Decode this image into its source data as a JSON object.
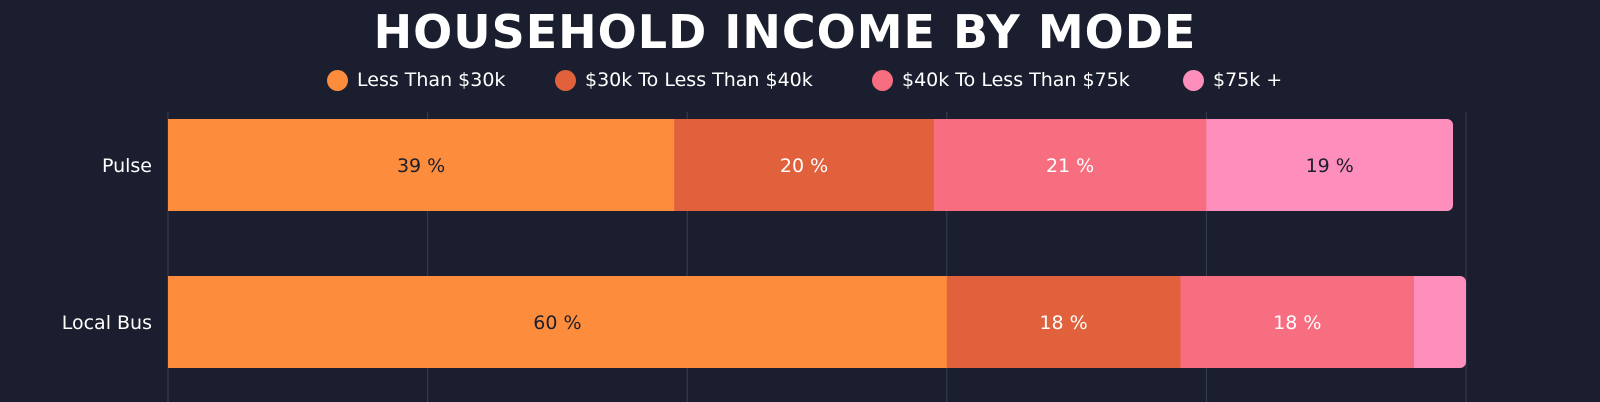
{
  "chart_data": {
    "type": "bar",
    "orientation": "horizontal",
    "stacked": true,
    "title": "HOUSEHOLD INCOME BY MODE",
    "categories": [
      "Pulse",
      "Local Bus"
    ],
    "series": [
      {
        "name": "Less Than $30k",
        "color": "#fd8d3c",
        "values": [
          39,
          60
        ],
        "labels": [
          "39 %",
          "60 %"
        ],
        "label_color": "#1b1e2e"
      },
      {
        "name": "$30k To Less Than $40k",
        "color": "#e0613b",
        "values": [
          20,
          18
        ],
        "labels": [
          "20 %",
          "18 %"
        ],
        "label_color": "#ffffff"
      },
      {
        "name": "$40k To Less Than $75k",
        "color": "#f76e80",
        "values": [
          21,
          18
        ],
        "labels": [
          "21 %",
          "18 %"
        ],
        "label_color": "#ffffff"
      },
      {
        "name": "$75k +",
        "color": "#fe8fbc",
        "values": [
          19,
          4
        ],
        "labels": [
          "19 %",
          ""
        ],
        "label_color": "#1b1e2e"
      }
    ],
    "xlim": [
      0,
      100
    ],
    "grid": true,
    "legend_position": "top"
  },
  "colors": {
    "background": "#1b1e2e",
    "grid": "#3a3e52",
    "text": "#ffffff"
  }
}
